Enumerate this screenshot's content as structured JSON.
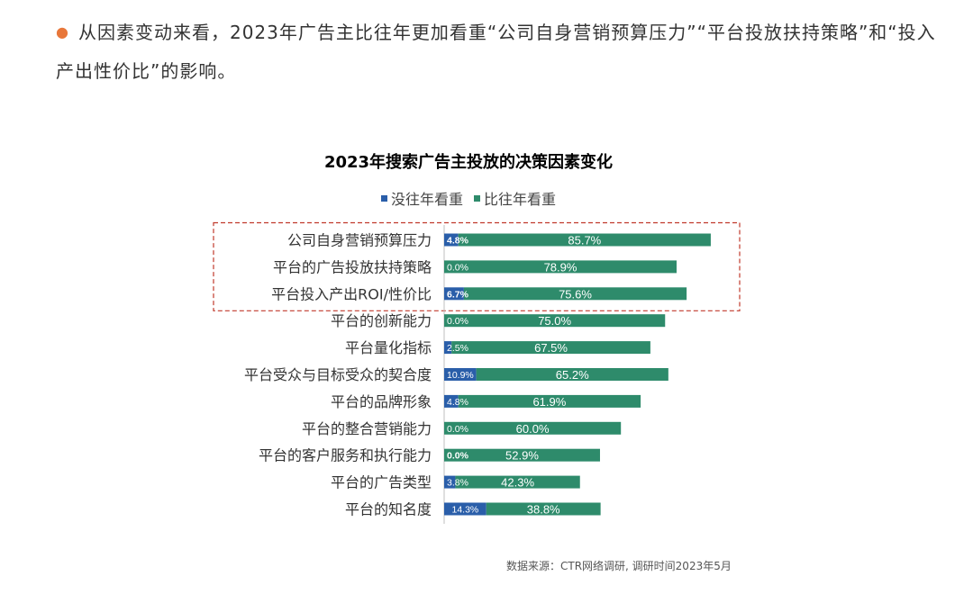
{
  "intro": {
    "bullet": "●",
    "text": "从因素变动来看，2023年广告主比往年更加看重“公司自身营销预算压力”“平台投放扶持策略”和“投入产出性价比”的影响。"
  },
  "colors": {
    "no_change": "#2a5ea9",
    "more": "#2e8b6b",
    "highlight_box": "#c0392b",
    "bullet": "#e8773a"
  },
  "chart_data": {
    "type": "bar",
    "orientation": "horizontal",
    "stacked": true,
    "title": "2023年搜索广告主投放的决策因素变化",
    "legend_position": "top",
    "categories": [
      "公司自身营销预算压力",
      "平台的广告投放扶持策略",
      "平台投入产出ROI/性价比",
      "平台的创新能力",
      "平台量化指标",
      "平台受众与目标受众的契合度",
      "平台的品牌形象",
      "平台的整合营销能力",
      "平台的客户服务和执行能力",
      "平台的广告类型",
      "平台的知名度"
    ],
    "series": [
      {
        "name": "没往年看重",
        "values": [
          4.8,
          0.0,
          6.7,
          0.0,
          2.5,
          10.9,
          4.8,
          0.0,
          0.0,
          3.8,
          14.3
        ],
        "labels": [
          "4.8%",
          "0.0%",
          "6.7%",
          "0.0%",
          "2.5%",
          "10.9%",
          "4.8%",
          "0.0%",
          "0.0%",
          "3.8%",
          "14.3%"
        ]
      },
      {
        "name": "比往年看重",
        "values": [
          85.7,
          78.9,
          75.6,
          75.0,
          67.5,
          65.2,
          61.9,
          60.0,
          52.9,
          42.3,
          38.8
        ],
        "labels": [
          "85.7%",
          "78.9%",
          "75.6%",
          "75.0%",
          "67.5%",
          "65.2%",
          "61.9%",
          "60.0%",
          "52.9%",
          "42.3%",
          "38.8%"
        ]
      }
    ],
    "highlighted_categories": [
      0,
      1,
      2
    ]
  },
  "source": "数据来源：CTR网络调研, 调研时间2023年5月"
}
